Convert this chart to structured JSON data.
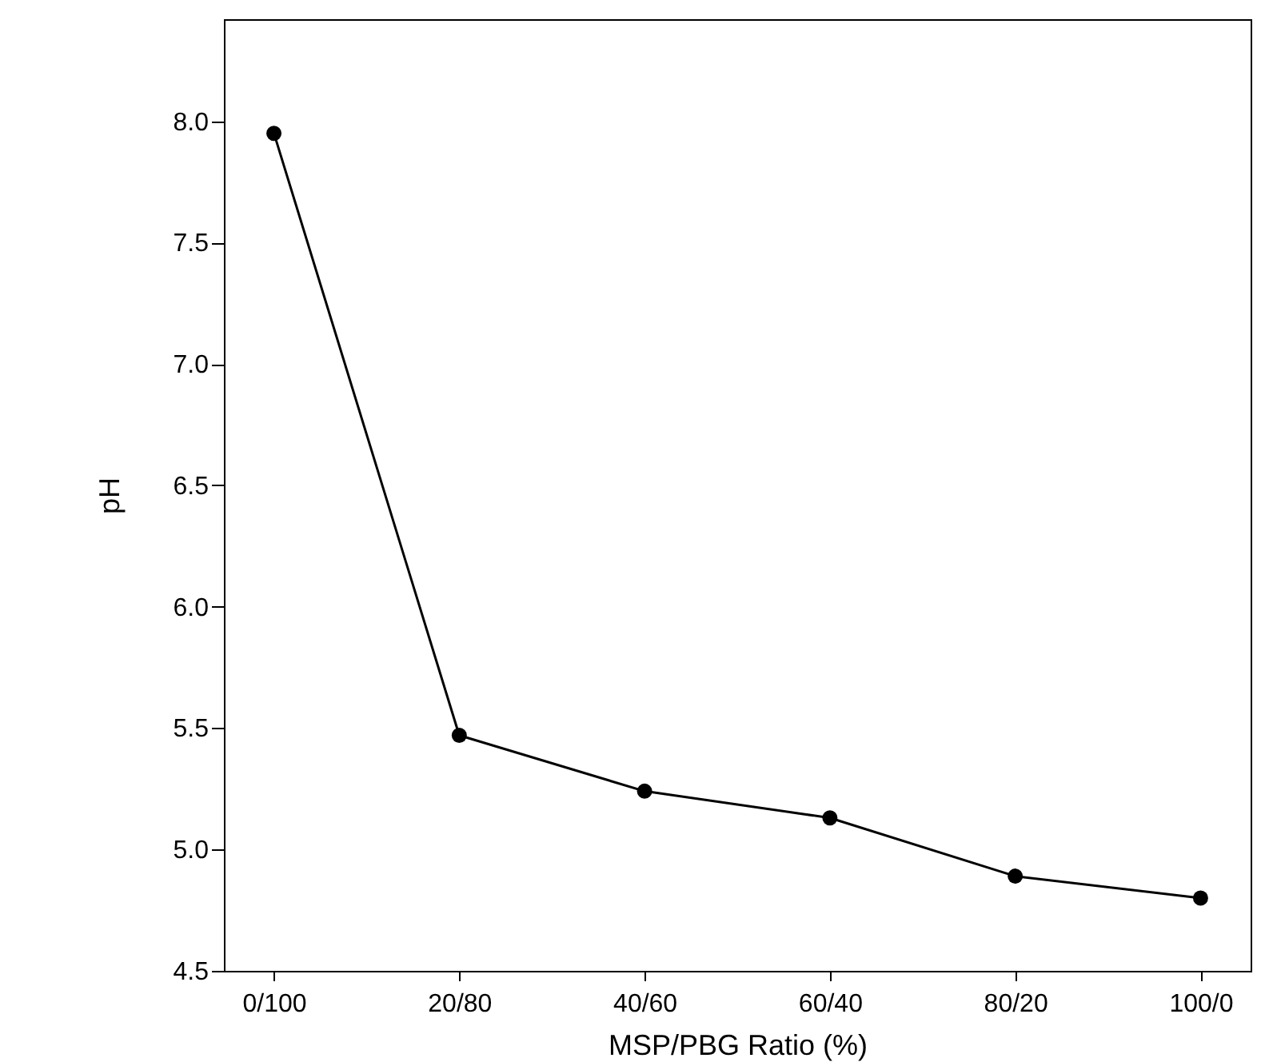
{
  "chart_data": {
    "type": "line",
    "xlabel": "MSP/PBG Ratio (%)",
    "ylabel": "pH",
    "categories": [
      "0/100",
      "20/80",
      "40/60",
      "60/40",
      "80/20",
      "100/0"
    ],
    "series": [
      {
        "color": "#000000",
        "values": [
          7.95,
          5.47,
          5.24,
          5.13,
          4.89,
          4.8
        ]
      }
    ],
    "ylim": [
      4.5,
      8.42
    ],
    "yticks": [
      {
        "value": 4.5,
        "label": "4.5"
      },
      {
        "value": 5,
        "label": "5.0"
      },
      {
        "value": 5.5,
        "label": "5.5"
      },
      {
        "value": 6,
        "label": "6.0"
      },
      {
        "value": 6.5,
        "label": "6.5"
      },
      {
        "value": 7,
        "label": "7.0"
      },
      {
        "value": 7.5,
        "label": "7.5"
      },
      {
        "value": 8,
        "label": "8.0"
      }
    ],
    "marker": "circle",
    "line_style": "solid",
    "grid": false
  }
}
